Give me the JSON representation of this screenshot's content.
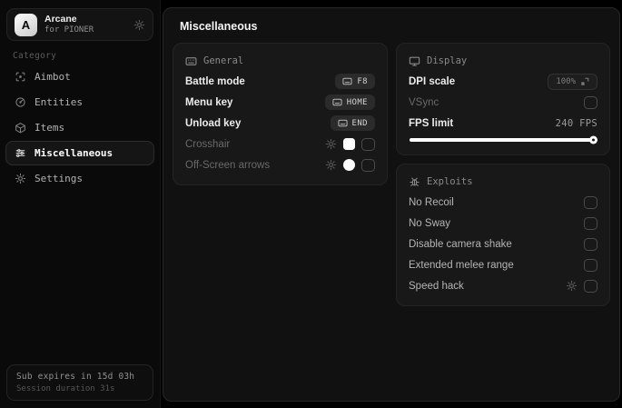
{
  "app": {
    "name": "Arcane",
    "subtitle": "for PIONER",
    "logo_letter": "A"
  },
  "sidebar": {
    "category_label": "Category",
    "items": [
      {
        "label": "Aimbot",
        "icon": "scan-icon",
        "active": false
      },
      {
        "label": "Entities",
        "icon": "radar-icon",
        "active": false
      },
      {
        "label": "Items",
        "icon": "box-icon",
        "active": false
      },
      {
        "label": "Miscellaneous",
        "icon": "sliders-icon",
        "active": true
      },
      {
        "label": "Settings",
        "icon": "gear-icon",
        "active": false
      }
    ],
    "footer": {
      "line1": "Sub expires in 15d 03h",
      "line2": "Session duration 31s"
    }
  },
  "main": {
    "title": "Miscellaneous",
    "panels": {
      "general": {
        "title": "General",
        "icon": "keyboard-icon",
        "rows": [
          {
            "label": "Battle mode",
            "keybind": "F8"
          },
          {
            "label": "Menu key",
            "keybind": "HOME"
          },
          {
            "label": "Unload key",
            "keybind": "END"
          },
          {
            "label": "Crosshair",
            "color": "#ffffff",
            "checked": false
          },
          {
            "label": "Off-Screen arrows",
            "color": "#ffffff",
            "checked": false
          }
        ]
      },
      "display": {
        "title": "Display",
        "icon": "monitor-icon",
        "dpi": {
          "label": "DPI scale",
          "value": "100%"
        },
        "vsync": {
          "label": "VSync",
          "checked": false
        },
        "fps": {
          "label": "FPS limit",
          "value": "240 FPS",
          "slider_percent": 100
        }
      },
      "exploits": {
        "title": "Exploits",
        "icon": "bug-icon",
        "rows": [
          {
            "label": "No Recoil",
            "checked": false
          },
          {
            "label": "No Sway",
            "checked": false
          },
          {
            "label": "Disable camera shake",
            "checked": false
          },
          {
            "label": "Extended melee range",
            "checked": false
          },
          {
            "label": "Speed hack",
            "checked": false,
            "has_settings": true
          }
        ]
      }
    }
  },
  "colors": {
    "accent_white": "#ffffff",
    "panel_bg": "#181818",
    "page_bg": "#000000"
  }
}
